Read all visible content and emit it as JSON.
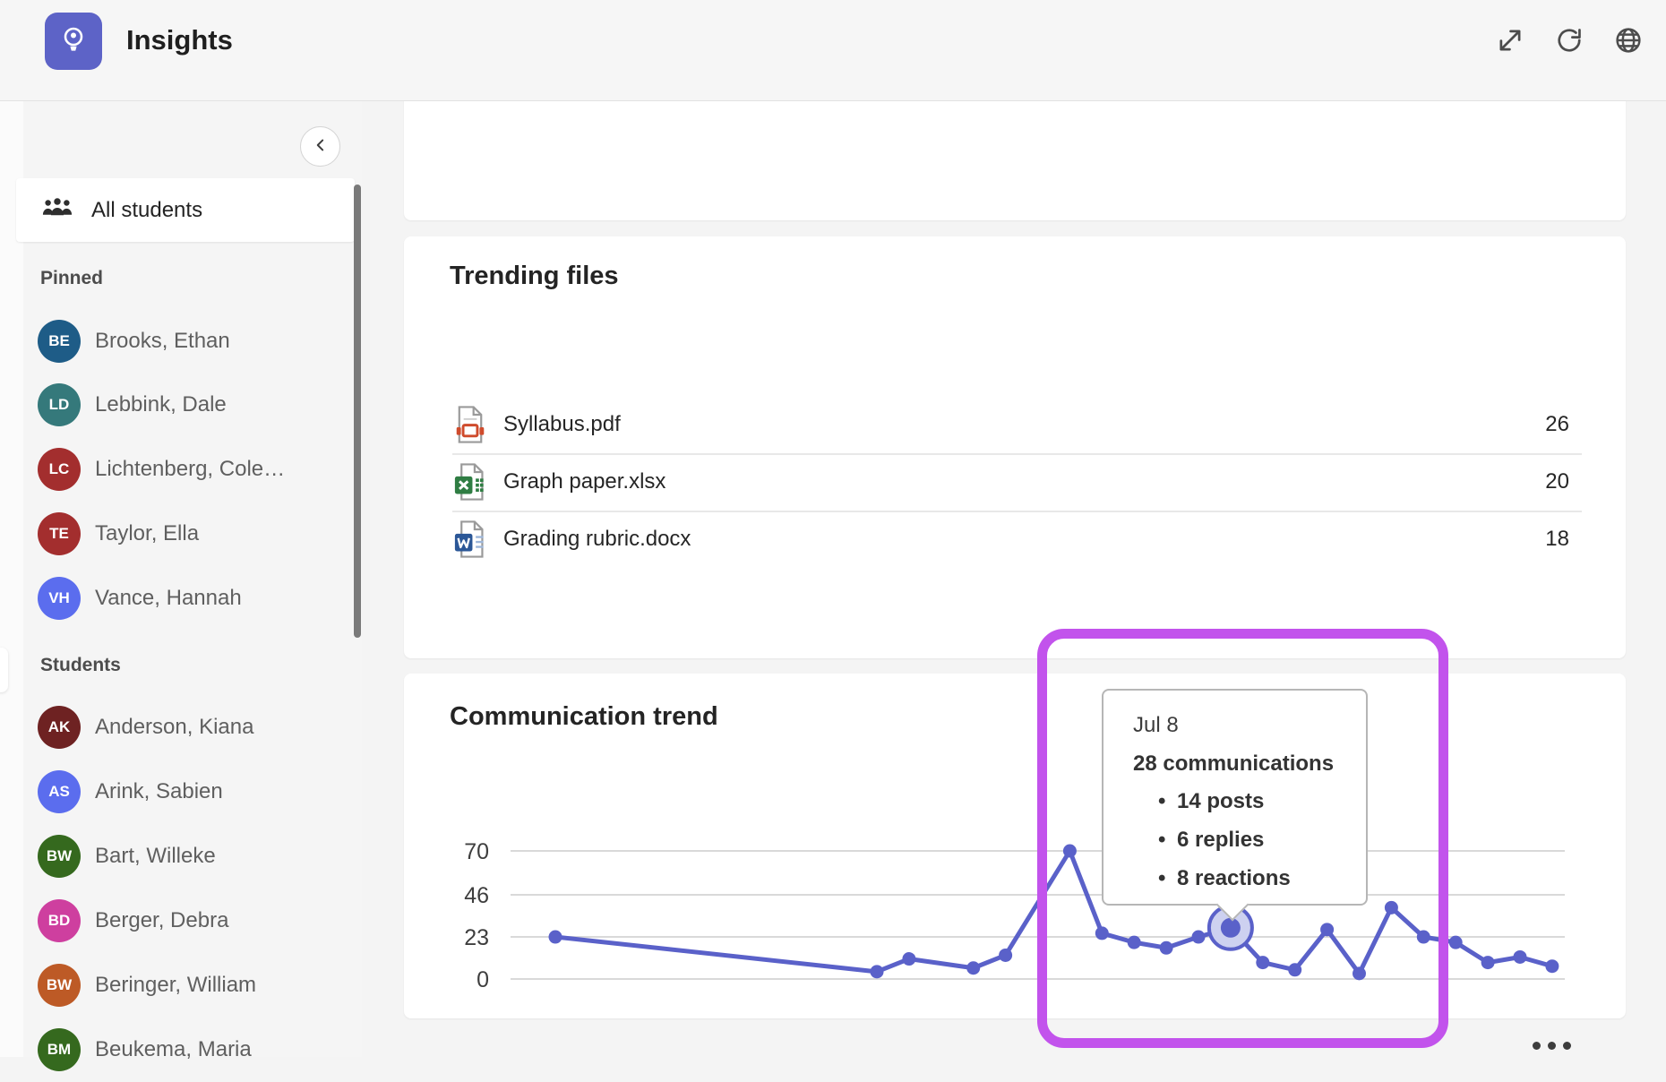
{
  "header": {
    "title": "Insights"
  },
  "sidebar": {
    "all_students": {
      "label": "All students"
    },
    "sections": [
      {
        "label": "Pinned",
        "items": [
          {
            "initials": "BE",
            "name": "Brooks, Ethan",
            "color": "#1e5c87"
          },
          {
            "initials": "LD",
            "name": "Lebbink, Dale",
            "color": "#35797b"
          },
          {
            "initials": "LC",
            "name": "Lichtenberg, Cole…",
            "color": "#a32e2e"
          },
          {
            "initials": "TE",
            "name": "Taylor, Ella",
            "color": "#a32e2e"
          },
          {
            "initials": "VH",
            "name": "Vance, Hannah",
            "color": "#5b6dee"
          }
        ]
      },
      {
        "label": "Students",
        "items": [
          {
            "initials": "AK",
            "name": "Anderson, Kiana",
            "color": "#6e2222"
          },
          {
            "initials": "AS",
            "name": "Arink, Sabien",
            "color": "#5b6dee"
          },
          {
            "initials": "BW",
            "name": "Bart, Willeke",
            "color": "#35691e"
          },
          {
            "initials": "BD",
            "name": "Berger, Debra",
            "color": "#ce3f9f"
          },
          {
            "initials": "BW",
            "name": "Beringer, William",
            "color": "#bd5a26"
          },
          {
            "initials": "BM",
            "name": "Beukema, Maria",
            "color": "#35691e"
          }
        ]
      }
    ]
  },
  "trending_files": {
    "title": "Trending files",
    "files": [
      {
        "name": "Syllabus.pdf",
        "type": "pdf",
        "opens": "26"
      },
      {
        "name": "Graph paper.xlsx",
        "type": "excel",
        "opens": "20"
      },
      {
        "name": "Grading rubric.docx",
        "type": "word",
        "opens": "18"
      }
    ]
  },
  "communication_trend": {
    "title": "Communication trend"
  },
  "tooltip": {
    "date": "Jul 8",
    "total": "28 communications",
    "bullets": [
      "14 posts",
      "6 replies",
      "8 reactions"
    ]
  },
  "chart_data": {
    "type": "line",
    "title": "Communication trend",
    "x_unit": "day index within period",
    "x": [
      0,
      10,
      11,
      13,
      14,
      16,
      17,
      18,
      19,
      20,
      21,
      22,
      23,
      24,
      25,
      26,
      27,
      28,
      29,
      30,
      31
    ],
    "values": [
      23,
      4,
      11,
      6,
      13,
      70,
      25,
      20,
      17,
      23,
      28,
      9,
      5,
      27,
      3,
      39,
      23,
      20,
      9,
      12,
      7
    ],
    "yticks": [
      70,
      46,
      23,
      0
    ],
    "ylim": [
      0,
      77
    ],
    "xlim": [
      0,
      31
    ],
    "grid": "horizontal",
    "legend": "none",
    "line_color": "#5a61c9",
    "grid_color": "#d9d9d9",
    "halo_fill": "#cdd1f0",
    "highlight": {
      "index": 10,
      "date": "Jul 8",
      "total": 28,
      "posts": 14,
      "replies": 6,
      "reactions": 8
    }
  },
  "annotation": {
    "color": "#c253ec"
  }
}
